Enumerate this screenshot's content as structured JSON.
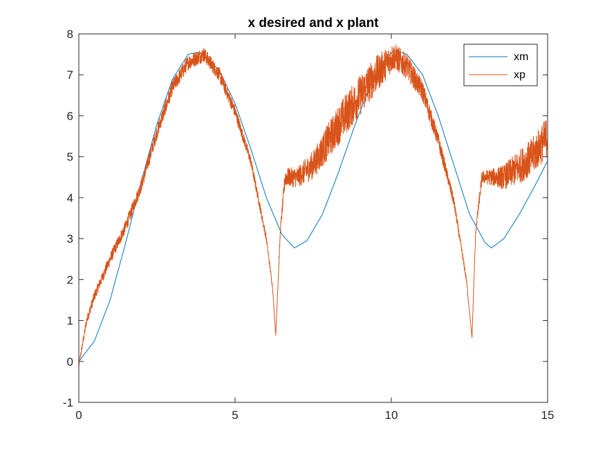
{
  "chart_data": {
    "type": "line",
    "title": "x desired and x plant",
    "xlabel": "",
    "ylabel": "",
    "xlim": [
      0,
      15
    ],
    "ylim": [
      -1,
      8
    ],
    "xticks": [
      0,
      5,
      10,
      15
    ],
    "yticks": [
      -1,
      0,
      1,
      2,
      3,
      4,
      5,
      6,
      7,
      8
    ],
    "grid": false,
    "legend_position": "top-right",
    "series": [
      {
        "name": "xm",
        "color": "#0072BD",
        "x": [
          0,
          0.5,
          1,
          1.5,
          2,
          2.5,
          3,
          3.5,
          3.8,
          4,
          4.5,
          5,
          5.5,
          6,
          6.5,
          6.9,
          7.3,
          7.8,
          8.3,
          8.8,
          9.3,
          9.8,
          10.1,
          10.5,
          11,
          11.5,
          12,
          12.5,
          13.0,
          13.2,
          13.6,
          14.1,
          14.6,
          15
        ],
        "y": [
          0,
          0.5,
          1.5,
          2.9,
          4.4,
          5.8,
          6.9,
          7.5,
          7.55,
          7.5,
          7.1,
          6.3,
          5.2,
          4.0,
          3.1,
          2.77,
          2.95,
          3.6,
          4.6,
          5.7,
          6.7,
          7.4,
          7.6,
          7.5,
          7.0,
          6.0,
          4.8,
          3.6,
          2.9,
          2.77,
          3.0,
          3.6,
          4.3,
          4.9
        ]
      },
      {
        "name": "xp",
        "color": "#D95319",
        "x": [
          0,
          0.25,
          0.5,
          1,
          1.5,
          2,
          2.5,
          3,
          3.5,
          4,
          4.5,
          5,
          5.5,
          6,
          6.2,
          6.3,
          6.45,
          6.6,
          7,
          7.5,
          8,
          8.5,
          9,
          9.5,
          10,
          10.1,
          10.5,
          11,
          11.5,
          12,
          12.4,
          12.58,
          12.7,
          12.9,
          13.2,
          13.6,
          14,
          14.5,
          15
        ],
        "y": [
          -0.1,
          1.0,
          1.6,
          2.5,
          3.3,
          4.3,
          5.6,
          6.7,
          7.3,
          7.5,
          7.0,
          6.1,
          4.9,
          3.0,
          1.8,
          0.65,
          3.2,
          4.5,
          4.5,
          4.8,
          5.4,
          6.0,
          6.5,
          7.0,
          7.4,
          7.45,
          7.2,
          6.6,
          5.4,
          3.9,
          2.0,
          0.58,
          3.2,
          4.5,
          4.5,
          4.5,
          4.7,
          5.0,
          5.5
        ],
        "noise_amplitude": [
          0.05,
          0.1,
          0.12,
          0.14,
          0.15,
          0.16,
          0.17,
          0.18,
          0.18,
          0.18,
          0.17,
          0.15,
          0.12,
          0.08,
          0.05,
          0.02,
          0.1,
          0.22,
          0.25,
          0.35,
          0.45,
          0.5,
          0.5,
          0.45,
          0.35,
          0.33,
          0.3,
          0.25,
          0.18,
          0.12,
          0.06,
          0.02,
          0.1,
          0.15,
          0.2,
          0.3,
          0.4,
          0.45,
          0.5
        ]
      }
    ]
  }
}
